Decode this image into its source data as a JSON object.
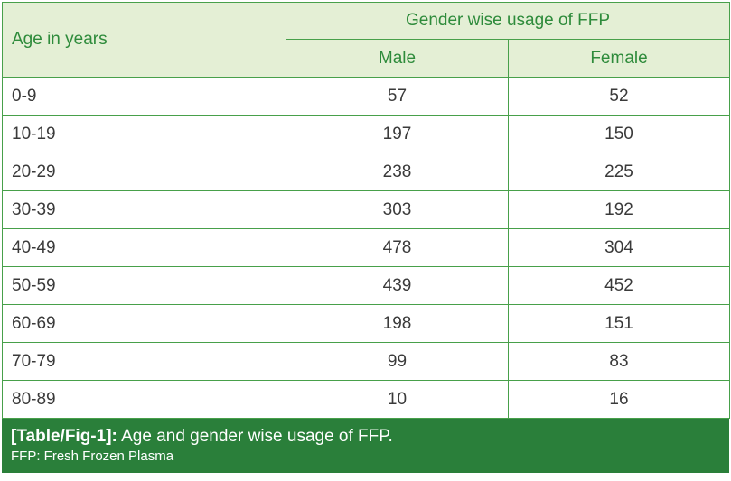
{
  "table": {
    "row_header": "Age in years",
    "group_header": "Gender wise usage of FFP",
    "columns": [
      "Male",
      "Female"
    ],
    "rows": [
      {
        "age": "0-9",
        "male": "57",
        "female": "52"
      },
      {
        "age": "10-19",
        "male": "197",
        "female": "150"
      },
      {
        "age": "20-29",
        "male": "238",
        "female": "225"
      },
      {
        "age": "30-39",
        "male": "303",
        "female": "192"
      },
      {
        "age": "40-49",
        "male": "478",
        "female": "304"
      },
      {
        "age": "50-59",
        "male": "439",
        "female": "452"
      },
      {
        "age": "60-69",
        "male": "198",
        "female": "151"
      },
      {
        "age": "70-79",
        "male": "99",
        "female": "83"
      },
      {
        "age": "80-89",
        "male": "10",
        "female": "16"
      }
    ]
  },
  "caption": {
    "label": "[Table/Fig-1]:",
    "text": "Age and gender wise usage of FFP.",
    "footnote": "FFP: Fresh Frozen Plasma"
  },
  "colors": {
    "border": "#48a04a",
    "header_bg": "#e4efd5",
    "header_text": "#2e8b3b",
    "caption_bg": "#2a7f3a"
  }
}
